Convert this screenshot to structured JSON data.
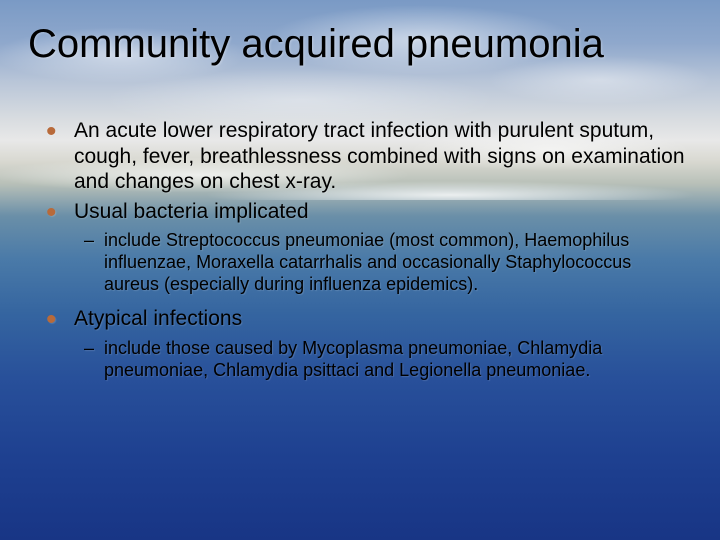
{
  "slide": {
    "title": "Community acquired pneumonia",
    "background_gradient_stops": [
      "#7a9ac5",
      "#8fa8cc",
      "#b8c5d8",
      "#d8dce0",
      "#e8e8e8",
      "#d8d8d0",
      "#b8c0b8",
      "#6a8fa8",
      "#4a7aa8",
      "#3565a0",
      "#28509a",
      "#1e4090",
      "#183585"
    ],
    "title_fontsize": 40,
    "title_color": "#000000",
    "bullet_color_level1": "#b86a3a",
    "bullet_color_level2": "#000000",
    "body_text_color": "#000000",
    "body_fontsize_level1": 21,
    "body_fontsize_level2": 18,
    "font_family": "Verdana",
    "bullets": [
      {
        "text": "An acute lower respiratory tract infection with purulent sputum, cough, fever, breathlessness combined with signs on examination and changes on chest x-ray.",
        "sub": []
      },
      {
        "text": "Usual bacteria implicated",
        "sub": [
          "include Streptococcus pneumoniae (most common), Haemophilus influenzae, Moraxella catarrhalis and occasionally Staphylococcus aureus (especially during influenza epidemics)."
        ]
      },
      {
        "text": "Atypical infections",
        "sub": [
          "include those caused by Mycoplasma pneumoniae, Chlamydia pneumoniae, Chlamydia psittaci and Legionella pneumoniae."
        ]
      }
    ]
  }
}
